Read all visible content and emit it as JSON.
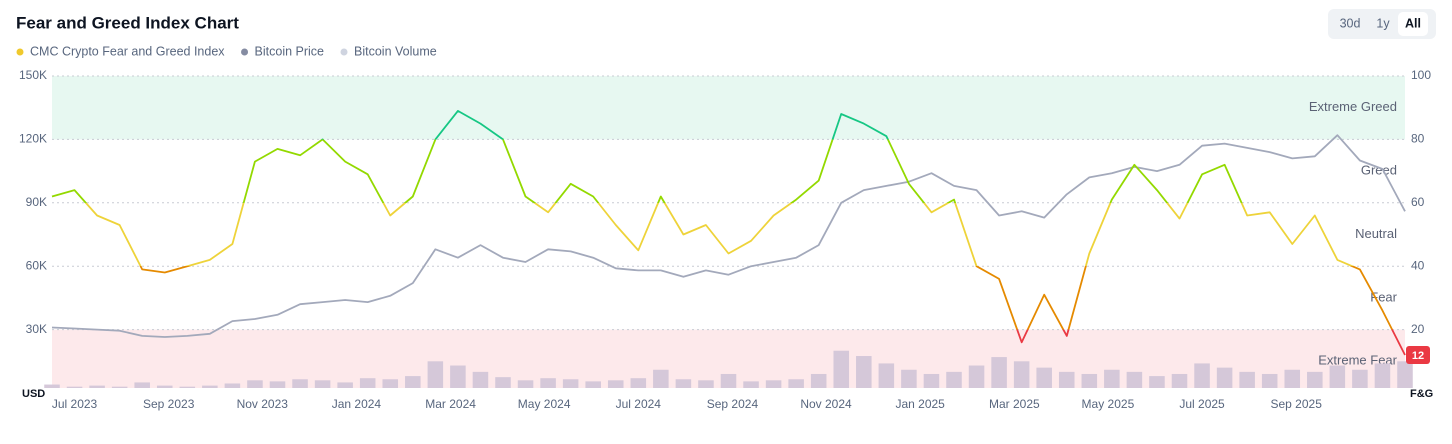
{
  "chart_data": {
    "type": "line",
    "title": "Fear and Greed Index Chart",
    "y_label": "USD",
    "y2_label": "F&G",
    "x": [
      2023.46,
      2023.5,
      2023.54,
      2023.58,
      2023.62,
      2023.66,
      2023.7,
      2023.74,
      2023.78,
      2023.82,
      2023.86,
      2023.9,
      2023.94,
      2023.98,
      2024.02,
      2024.06,
      2024.1,
      2024.14,
      2024.18,
      2024.22,
      2024.26,
      2024.3,
      2024.34,
      2024.38,
      2024.42,
      2024.46,
      2024.5,
      2024.54,
      2024.58,
      2024.62,
      2024.66,
      2024.7,
      2024.74,
      2024.78,
      2024.82,
      2024.86,
      2024.9,
      2024.94,
      2024.98,
      2025.02,
      2025.06,
      2025.1,
      2025.14,
      2025.18,
      2025.22,
      2025.26,
      2025.3,
      2025.34,
      2025.38,
      2025.42,
      2025.46,
      2025.5,
      2025.54,
      2025.58,
      2025.62,
      2025.66,
      2025.7,
      2025.74,
      2025.78,
      2025.82,
      2025.86
    ],
    "xlim": [
      2023.46,
      2025.86
    ],
    "xticks": [
      {
        "value": 2023.5,
        "label": "Jul 2023"
      },
      {
        "value": 2023.667,
        "label": "Sep 2023"
      },
      {
        "value": 2023.833,
        "label": "Nov 2023"
      },
      {
        "value": 2024.0,
        "label": "Jan 2024"
      },
      {
        "value": 2024.167,
        "label": "Mar 2024"
      },
      {
        "value": 2024.333,
        "label": "May 2024"
      },
      {
        "value": 2024.5,
        "label": "Jul 2024"
      },
      {
        "value": 2024.667,
        "label": "Sep 2024"
      },
      {
        "value": 2024.833,
        "label": "Nov 2024"
      },
      {
        "value": 2025.0,
        "label": "Jan 2025"
      },
      {
        "value": 2025.167,
        "label": "Mar 2025"
      },
      {
        "value": 2025.333,
        "label": "May 2025"
      },
      {
        "value": 2025.5,
        "label": "Jul 2025"
      },
      {
        "value": 2025.667,
        "label": "Sep 2025"
      }
    ],
    "ylim": [
      0,
      150000
    ],
    "yticks": [
      {
        "value": 30000,
        "label": "30K"
      },
      {
        "value": 60000,
        "label": "60K"
      },
      {
        "value": 90000,
        "label": "90K"
      },
      {
        "value": 120000,
        "label": "120K"
      },
      {
        "value": 150000,
        "label": "150K"
      }
    ],
    "y2lim": [
      0,
      100
    ],
    "y2ticks": [
      20,
      40,
      60,
      80,
      100
    ],
    "y3lim": [
      0,
      300
    ],
    "grid": true,
    "zones": [
      {
        "label": "Extreme Greed",
        "from": 80,
        "to": 100,
        "color": "#16c784",
        "fill": "#e7f8f1"
      },
      {
        "label": "Greed",
        "from": 60,
        "to": 80,
        "color": "#93d900"
      },
      {
        "label": "Neutral",
        "from": 40,
        "to": 60,
        "color": "#eed33a"
      },
      {
        "label": "Fear",
        "from": 20,
        "to": 40,
        "color": "#e58a00"
      },
      {
        "label": "Extreme Fear",
        "from": 0,
        "to": 20,
        "color": "#ea3943",
        "fill": "#fde9eb"
      }
    ],
    "series": [
      {
        "name": "CMC Crypto Fear and Greed Index",
        "color": "#f0c92c",
        "axis": "y2",
        "values": [
          62,
          64,
          56,
          53,
          39,
          38,
          40,
          42,
          47,
          73,
          77,
          75,
          80,
          73,
          69,
          56,
          62,
          80,
          89,
          85,
          80,
          62,
          57,
          66,
          62,
          53,
          45,
          62,
          50,
          53,
          44,
          48,
          56,
          61,
          67,
          88,
          85,
          81,
          66,
          57,
          61,
          40,
          36,
          16,
          31,
          18,
          44,
          61,
          72,
          64,
          55,
          69,
          72,
          56,
          57,
          47,
          56,
          42,
          39,
          26,
          12
        ]
      },
      {
        "name": "Bitcoin Price",
        "color": "#a3a9bb",
        "legend_color": "#858ca2",
        "values": [
          31000,
          30500,
          30000,
          29500,
          27000,
          26500,
          27000,
          28000,
          34000,
          35000,
          37000,
          42000,
          43000,
          44000,
          43000,
          46000,
          52000,
          68000,
          64000,
          70000,
          64000,
          62000,
          68000,
          67000,
          64000,
          59000,
          58000,
          58000,
          55000,
          58000,
          56000,
          60000,
          62000,
          64000,
          70000,
          90000,
          96000,
          98000,
          100000,
          104000,
          98000,
          96000,
          84000,
          86000,
          83000,
          94000,
          102000,
          104000,
          107000,
          105000,
          108000,
          117000,
          118000,
          116000,
          114000,
          111000,
          112000,
          122000,
          110000,
          106000,
          86000
        ]
      },
      {
        "name": "Bitcoin Volume",
        "color": "#d5c8d9",
        "legend_color": "#cfd4e0",
        "axis": "y3",
        "values": [
          8,
          6,
          7,
          6,
          10,
          7,
          6,
          7,
          9,
          12,
          11,
          13,
          12,
          10,
          14,
          13,
          16,
          30,
          26,
          20,
          15,
          12,
          14,
          13,
          11,
          12,
          14,
          22,
          13,
          12,
          18,
          11,
          12,
          13,
          18,
          40,
          35,
          28,
          22,
          18,
          20,
          26,
          34,
          30,
          24,
          20,
          18,
          22,
          20,
          16,
          18,
          28,
          24,
          20,
          18,
          22,
          20,
          26,
          22,
          28,
          30
        ]
      }
    ]
  },
  "controls": {
    "range_buttons": [
      "30d",
      "1y",
      "All"
    ],
    "active": 2
  }
}
